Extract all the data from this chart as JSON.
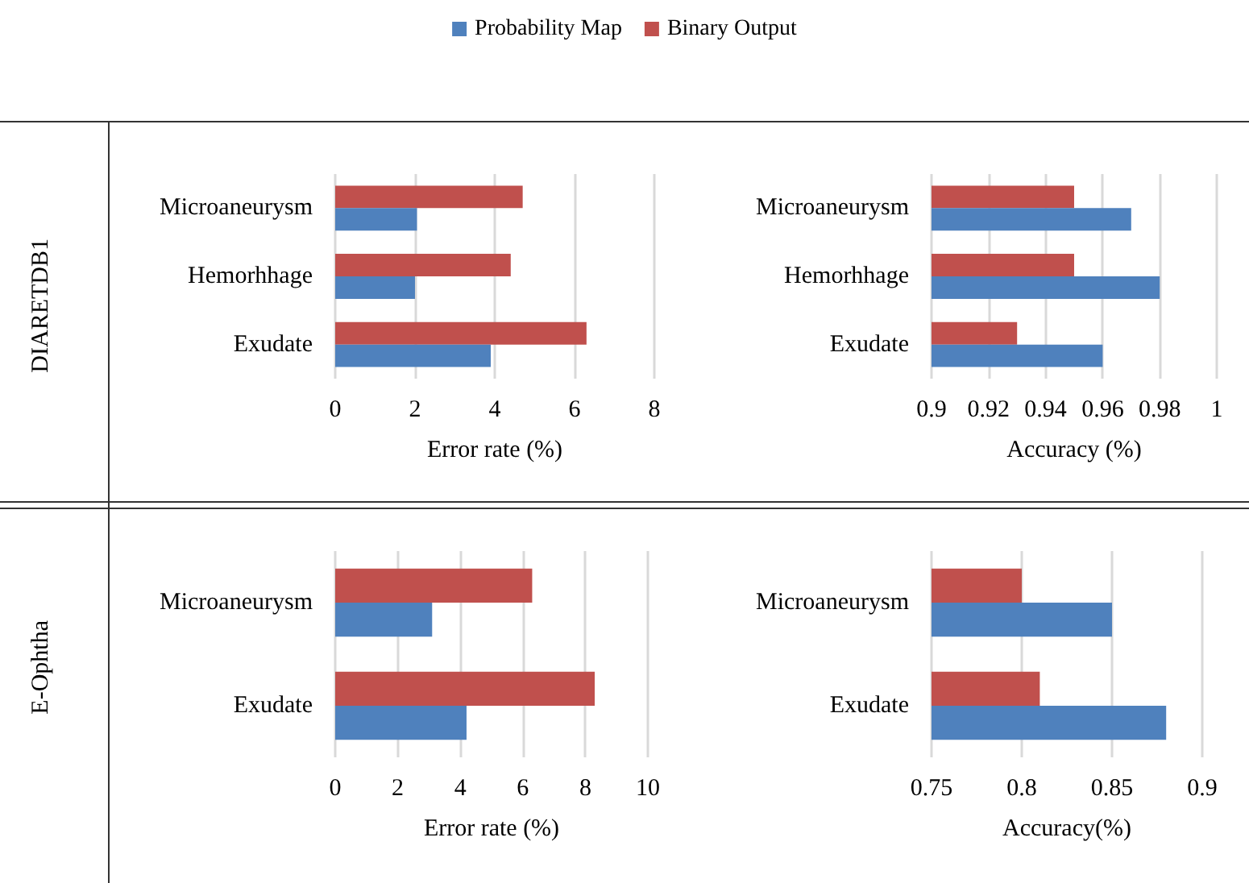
{
  "chart_data": [
    {
      "type": "bar",
      "orientation": "horizontal",
      "ylabel": "DIARETDB1",
      "xlabel": "Error rate (%)",
      "categories": [
        "Microaneurysm",
        "Hemorhhage",
        "Exudate"
      ],
      "series": [
        {
          "name": "Probability Map",
          "color": "#4f81bd",
          "values": [
            2.05,
            2.0,
            3.9
          ]
        },
        {
          "name": "Binary Output",
          "color": "#c0504d",
          "values": [
            4.7,
            4.4,
            6.3
          ]
        }
      ],
      "xlim": [
        0,
        8
      ],
      "xticks": [
        0,
        2,
        4,
        6,
        8
      ],
      "grid": "x",
      "legend": "top"
    },
    {
      "type": "bar",
      "orientation": "horizontal",
      "xlabel": "Accuracy (%)",
      "categories": [
        "Microaneurysm",
        "Hemorhhage",
        "Exudate"
      ],
      "series": [
        {
          "color": "#4f81bd",
          "values": [
            0.97,
            0.98,
            0.96
          ]
        },
        {
          "color": "#c0504d",
          "values": [
            0.95,
            0.95,
            0.93
          ]
        }
      ],
      "xlim": [
        0.9,
        1
      ],
      "xticks": [
        0.9,
        0.92,
        0.94,
        0.96,
        0.98,
        1
      ],
      "grid": "x"
    },
    {
      "type": "bar",
      "orientation": "horizontal",
      "ylabel": "E-Ophtha",
      "xlabel": "Error rate (%)",
      "categories": [
        "Microaneurysm",
        "Exudate"
      ],
      "series": [
        {
          "color": "#4f81bd",
          "values": [
            3.1,
            4.2
          ]
        },
        {
          "color": "#c0504d",
          "values": [
            6.3,
            8.3
          ]
        }
      ],
      "xlim": [
        0,
        10
      ],
      "xticks": [
        0,
        2,
        4,
        6,
        8,
        10
      ],
      "grid": "x"
    },
    {
      "type": "bar",
      "orientation": "horizontal",
      "xlabel": "Accuracy(%)",
      "categories": [
        "Microaneurysm",
        "Exudate"
      ],
      "series": [
        {
          "color": "#4f81bd",
          "values": [
            0.85,
            0.88
          ]
        },
        {
          "color": "#c0504d",
          "values": [
            0.8,
            0.81
          ]
        }
      ],
      "xlim": [
        0.75,
        0.9
      ],
      "xticks": [
        0.75,
        0.8,
        0.85,
        0.9
      ],
      "grid": "x"
    }
  ]
}
